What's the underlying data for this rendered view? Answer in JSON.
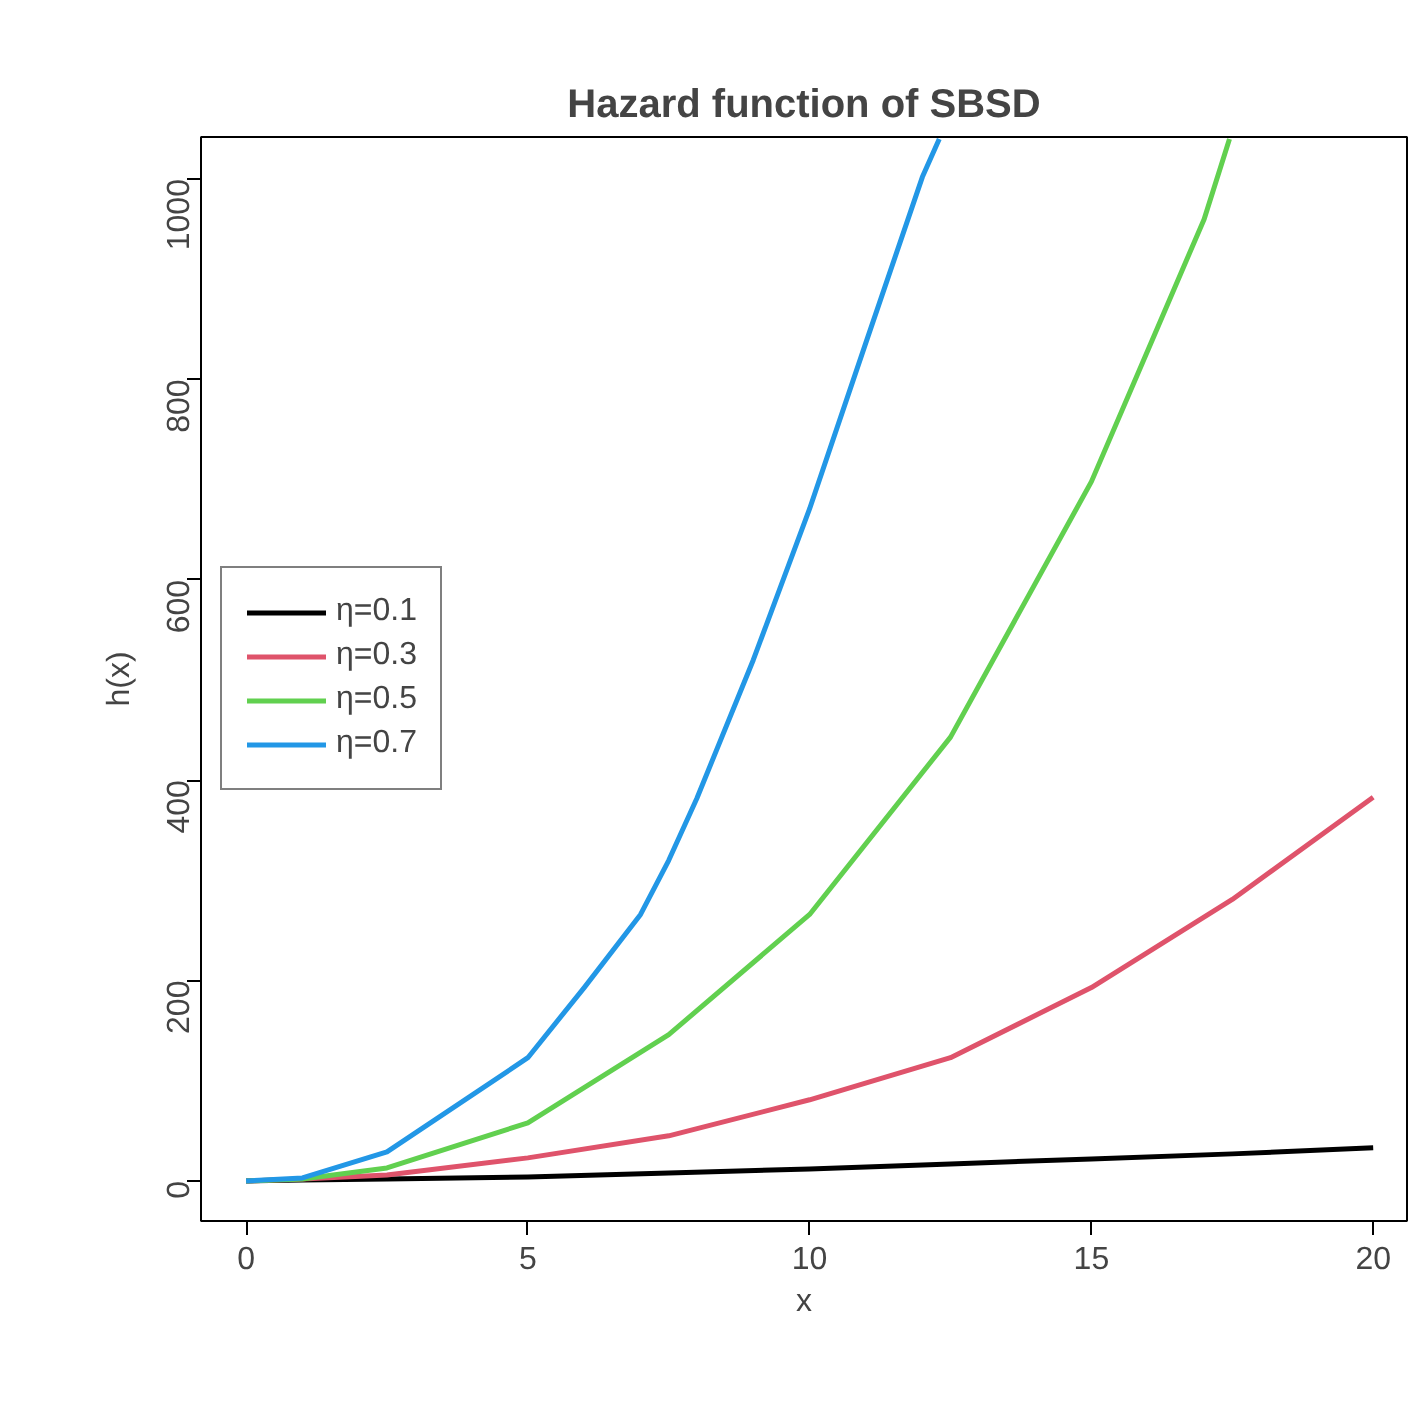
{
  "chart_data": {
    "type": "line",
    "title": "Hazard function of SBSD",
    "xlabel": "x",
    "ylabel": "h(x)",
    "xlim": [
      -0.8,
      20.6
    ],
    "ylim": [
      -40,
      1042
    ],
    "xticks": [
      0,
      5,
      10,
      15,
      20
    ],
    "yticks": [
      0,
      200,
      400,
      600,
      800,
      1000
    ],
    "grid": false,
    "legend": "left",
    "line_style": "solid",
    "marker": "none",
    "series": [
      {
        "name": "η=0.1",
        "color": "#000000",
        "x": [
          0,
          1,
          2.5,
          5,
          7.5,
          10,
          12.5,
          15,
          17.5,
          20
        ],
        "values": [
          0,
          1,
          2,
          4,
          8,
          12,
          17,
          22,
          27,
          33
        ]
      },
      {
        "name": "η=0.3",
        "color": "#df536b",
        "x": [
          0,
          1,
          2.5,
          5,
          7.5,
          10,
          12.5,
          15,
          17.5,
          20
        ],
        "values": [
          0,
          2,
          6,
          23,
          45,
          81,
          123,
          193,
          281,
          383
        ]
      },
      {
        "name": "η=0.5",
        "color": "#61d04f",
        "x": [
          0,
          1,
          2.5,
          5,
          7.5,
          10,
          12.5,
          15,
          16,
          17,
          17.45
        ],
        "values": [
          0,
          2,
          13,
          58,
          146,
          266,
          443,
          698,
          829,
          960,
          1040
        ]
      },
      {
        "name": "η=0.7",
        "color": "#2297e6",
        "x": [
          0,
          1,
          2.5,
          5,
          6,
          7,
          7.5,
          8,
          9,
          10,
          11,
          12,
          12.3
        ],
        "values": [
          0,
          3,
          29,
          123,
          193,
          266,
          320,
          382,
          520,
          671,
          837,
          1002,
          1040
        ]
      }
    ]
  }
}
